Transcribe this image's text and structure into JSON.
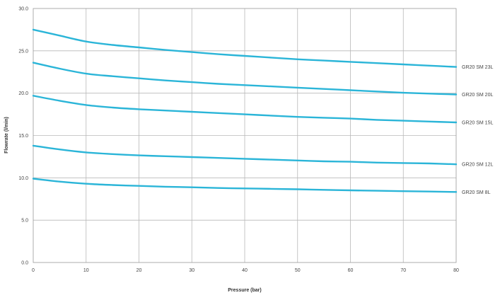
{
  "chart_data": {
    "type": "line",
    "title": "",
    "xlabel": "Pressure (bar)",
    "ylabel": "Flowrate (l/min)",
    "xlim": [
      0,
      80
    ],
    "ylim": [
      0,
      30
    ],
    "xticks": [
      0,
      10,
      20,
      30,
      40,
      50,
      60,
      70,
      80
    ],
    "yticks": [
      0,
      5,
      10,
      15,
      20,
      25,
      30
    ],
    "xtick_labels": [
      "0",
      "10",
      "20",
      "30",
      "40",
      "50",
      "60",
      "70",
      "80"
    ],
    "ytick_labels": [
      "0.0",
      "5.0",
      "10.0",
      "15.0",
      "20.0",
      "25.0",
      "30.0"
    ],
    "grid": true,
    "legend": "right-of-lines",
    "line_color": "#2bb5d8",
    "x": [
      0,
      5,
      10,
      15,
      20,
      25,
      30,
      35,
      40,
      45,
      50,
      55,
      60,
      65,
      70,
      75,
      80
    ],
    "series": [
      {
        "name": "GR20 SM 23L",
        "values": [
          27.5,
          26.8,
          26.1,
          25.7,
          25.4,
          25.1,
          24.85,
          24.6,
          24.4,
          24.2,
          24.0,
          23.85,
          23.7,
          23.55,
          23.4,
          23.25,
          23.1
        ]
      },
      {
        "name": "GR20 SM 20L",
        "values": [
          23.6,
          22.9,
          22.3,
          22.0,
          21.75,
          21.5,
          21.3,
          21.1,
          20.95,
          20.8,
          20.65,
          20.5,
          20.35,
          20.2,
          20.05,
          19.95,
          19.85
        ]
      },
      {
        "name": "GR20 SM 15L",
        "values": [
          19.7,
          19.1,
          18.6,
          18.3,
          18.1,
          17.95,
          17.8,
          17.65,
          17.5,
          17.35,
          17.2,
          17.1,
          17.0,
          16.85,
          16.75,
          16.65,
          16.55
        ]
      },
      {
        "name": "GR20 SM 12L",
        "values": [
          13.8,
          13.35,
          13.0,
          12.8,
          12.65,
          12.55,
          12.45,
          12.35,
          12.25,
          12.15,
          12.05,
          11.95,
          11.9,
          11.8,
          11.75,
          11.7,
          11.6
        ]
      },
      {
        "name": "GR20 SM 8L",
        "values": [
          9.9,
          9.55,
          9.3,
          9.15,
          9.05,
          8.95,
          8.88,
          8.8,
          8.75,
          8.7,
          8.65,
          8.58,
          8.52,
          8.47,
          8.42,
          8.38,
          8.33
        ]
      }
    ]
  }
}
